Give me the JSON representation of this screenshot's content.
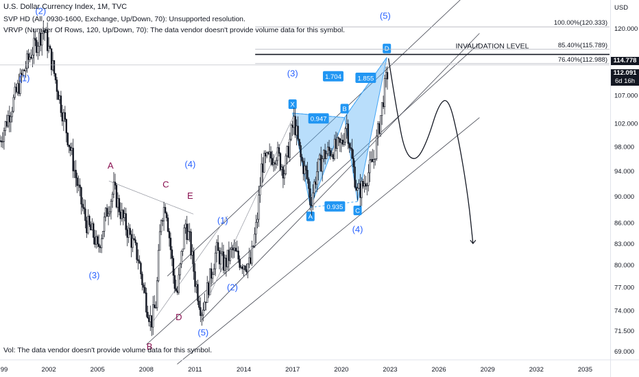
{
  "header": {
    "title": "U.S. Dollar Currency Index, 1M, TVC",
    "line2": "SVP HD (All, 0930-1600, Exchange, Up/Down, 70): Unsupported resolution.",
    "line3": "VRVP (Number Of Rows, 120, Up/Down, 70): The data vendor doesn't provide volume data for this symbol."
  },
  "volume_note": "Vol: The data vendor doesn't provide volume data for this symbol.",
  "price_axis": {
    "currency": "USD",
    "ticks": [
      "120.000",
      "107.000",
      "102.000",
      "98.000",
      "94.000",
      "90.000",
      "86.000",
      "83.000",
      "80.000",
      "77.000",
      "74.000",
      "71.500",
      "69.000"
    ],
    "tag_invalidation": "114.778",
    "tag_last": "112.091",
    "tag_countdown": "6d 16h"
  },
  "time_axis": {
    "ticks": [
      "99",
      "2002",
      "2005",
      "2008",
      "2011",
      "2014",
      "2017",
      "2020",
      "2023",
      "2026",
      "2029",
      "2032",
      "2035"
    ]
  },
  "chart_data": {
    "type": "candlestick",
    "title": "U.S. Dollar Currency Index, 1M, TVC",
    "y_scale": "log",
    "ylim": [
      68,
      126
    ],
    "xlim": [
      1999.0,
      2036.5
    ],
    "close_path": [
      [
        1999.0,
        99.0
      ],
      [
        1999.6,
        104.0
      ],
      [
        2000.4,
        111.0
      ],
      [
        2000.9,
        115.0
      ],
      [
        2001.4,
        118.0
      ],
      [
        2001.7,
        120.0
      ],
      [
        2002.2,
        113.0
      ],
      [
        2002.7,
        106.0
      ],
      [
        2003.3,
        98.0
      ],
      [
        2003.9,
        90.0
      ],
      [
        2004.3,
        86.0
      ],
      [
        2004.8,
        84.0
      ],
      [
        2005.0,
        82.0
      ],
      [
        2005.6,
        88.0
      ],
      [
        2006.0,
        91.0
      ],
      [
        2006.5,
        87.0
      ],
      [
        2007.0,
        84.0
      ],
      [
        2007.5,
        81.0
      ],
      [
        2007.9,
        76.0
      ],
      [
        2008.3,
        72.5
      ],
      [
        2008.6,
        75.0
      ],
      [
        2008.9,
        87.0
      ],
      [
        2009.2,
        89.0
      ],
      [
        2009.7,
        78.0
      ],
      [
        2009.9,
        76.0
      ],
      [
        2010.4,
        86.0
      ],
      [
        2010.7,
        83.0
      ],
      [
        2011.0,
        78.0
      ],
      [
        2011.4,
        74.0
      ],
      [
        2011.8,
        77.0
      ],
      [
        2012.3,
        82.0
      ],
      [
        2012.8,
        80.0
      ],
      [
        2013.3,
        82.0
      ],
      [
        2013.8,
        80.5
      ],
      [
        2014.4,
        80.0
      ],
      [
        2014.8,
        86.0
      ],
      [
        2015.1,
        95.0
      ],
      [
        2015.6,
        96.0
      ],
      [
        2016.0,
        97.0
      ],
      [
        2016.5,
        94.0
      ],
      [
        2016.9,
        100.0
      ],
      [
        2017.1,
        102.5
      ],
      [
        2017.5,
        96.0
      ],
      [
        2017.9,
        93.0
      ],
      [
        2018.1,
        89.0
      ],
      [
        2018.5,
        94.0
      ],
      [
        2018.9,
        96.5
      ],
      [
        2019.4,
        97.5
      ],
      [
        2019.9,
        98.0
      ],
      [
        2020.1,
        99.0
      ],
      [
        2020.3,
        102.5
      ],
      [
        2020.7,
        95.0
      ],
      [
        2021.0,
        90.5
      ],
      [
        2021.3,
        91.5
      ],
      [
        2021.7,
        94.0
      ],
      [
        2022.0,
        96.0
      ],
      [
        2022.4,
        103.0
      ],
      [
        2022.7,
        109.0
      ],
      [
        2022.9,
        112.0
      ]
    ],
    "fib_levels": [
      {
        "label": "100.00%(120.333)",
        "value": 120.333
      },
      {
        "label": "85.40%(115.789)",
        "value": 115.789
      },
      {
        "label": "76.40%(112.988)",
        "value": 112.988
      }
    ],
    "invalidation_level": {
      "label": "INVALIDATION LEVEL",
      "value": 114.778
    },
    "harmonic_pattern": {
      "points": [
        {
          "label": "X",
          "x": 2017.0,
          "y": 103.8
        },
        {
          "label": "A",
          "x": 2018.1,
          "y": 88.3
        },
        {
          "label": "B",
          "x": 2020.2,
          "y": 103.0
        },
        {
          "label": "C",
          "x": 2021.0,
          "y": 89.2
        },
        {
          "label": "D",
          "x": 2022.8,
          "y": 114.2
        }
      ],
      "ratios": [
        {
          "label": "0.947",
          "x": 2018.6,
          "y": 102.8
        },
        {
          "label": "0.935",
          "x": 2019.6,
          "y": 88.4
        },
        {
          "label": "1.704",
          "x": 2019.5,
          "y": 110.5
        },
        {
          "label": "1.855",
          "x": 2021.5,
          "y": 110.2
        }
      ],
      "fill_color": "#64b5f6"
    },
    "wave_labels": [
      {
        "text": "(2)",
        "x": 2001.5,
        "y": 123.0,
        "color": "#2962ff"
      },
      {
        "text": "(1)",
        "x": 2000.5,
        "y": 109.6,
        "color": "#2962ff"
      },
      {
        "text": "(3)",
        "x": 2004.8,
        "y": 78.2,
        "color": "#2962ff"
      },
      {
        "text": "A",
        "x": 2005.8,
        "y": 94.4,
        "color": "#880e4f"
      },
      {
        "text": "B",
        "x": 2008.2,
        "y": 69.2,
        "color": "#880e4f"
      },
      {
        "text": "C",
        "x": 2009.2,
        "y": 91.4,
        "color": "#880e4f"
      },
      {
        "text": "D",
        "x": 2010.0,
        "y": 72.8,
        "color": "#880e4f"
      },
      {
        "text": "E",
        "x": 2010.7,
        "y": 89.6,
        "color": "#880e4f"
      },
      {
        "text": "(4)",
        "x": 2010.7,
        "y": 94.6,
        "color": "#2962ff"
      },
      {
        "text": "(5)",
        "x": 2011.5,
        "y": 70.9,
        "color": "#2962ff"
      },
      {
        "text": "(1)",
        "x": 2012.7,
        "y": 85.9,
        "color": "#2962ff"
      },
      {
        "text": "(2)",
        "x": 2013.3,
        "y": 76.6,
        "color": "#2962ff"
      },
      {
        "text": "(3)",
        "x": 2017.0,
        "y": 110.5,
        "color": "#2962ff"
      },
      {
        "text": "(4)",
        "x": 2021.0,
        "y": 84.6,
        "color": "#2962ff"
      },
      {
        "text": "(5)",
        "x": 2022.7,
        "y": 122.0,
        "color": "#2962ff"
      }
    ],
    "channel_lines": [
      [
        [
          2009.3,
          78.5
        ],
        [
          2028.5,
          130.0
        ]
      ],
      [
        [
          2008.0,
          69.8
        ],
        [
          2028.5,
          117.0
        ]
      ],
      [
        [
          2011.4,
          72.8
        ],
        [
          2028.5,
          119.0
        ]
      ],
      [
        [
          2009.9,
          67.5
        ],
        [
          2028.5,
          103.0
        ]
      ]
    ],
    "trend_lines": [
      [
        [
          2005.7,
          92.4
        ],
        [
          2010.9,
          87.3
        ]
      ],
      [
        [
          2008.2,
          72.0
        ],
        [
          2013.0,
          87.0
        ]
      ],
      [
        [
          2011.4,
          73.8
        ],
        [
          2017.1,
          103.5
        ]
      ]
    ],
    "projection_path": [
      [
        2022.9,
        114.0
      ],
      [
        2023.4,
        104.5
      ],
      [
        2023.9,
        97.0
      ],
      [
        2024.6,
        95.5
      ],
      [
        2025.3,
        99.0
      ],
      [
        2026.0,
        105.5
      ],
      [
        2026.6,
        106.5
      ],
      [
        2027.2,
        99.5
      ],
      [
        2027.8,
        90.0
      ],
      [
        2028.1,
        83.0
      ]
    ]
  }
}
